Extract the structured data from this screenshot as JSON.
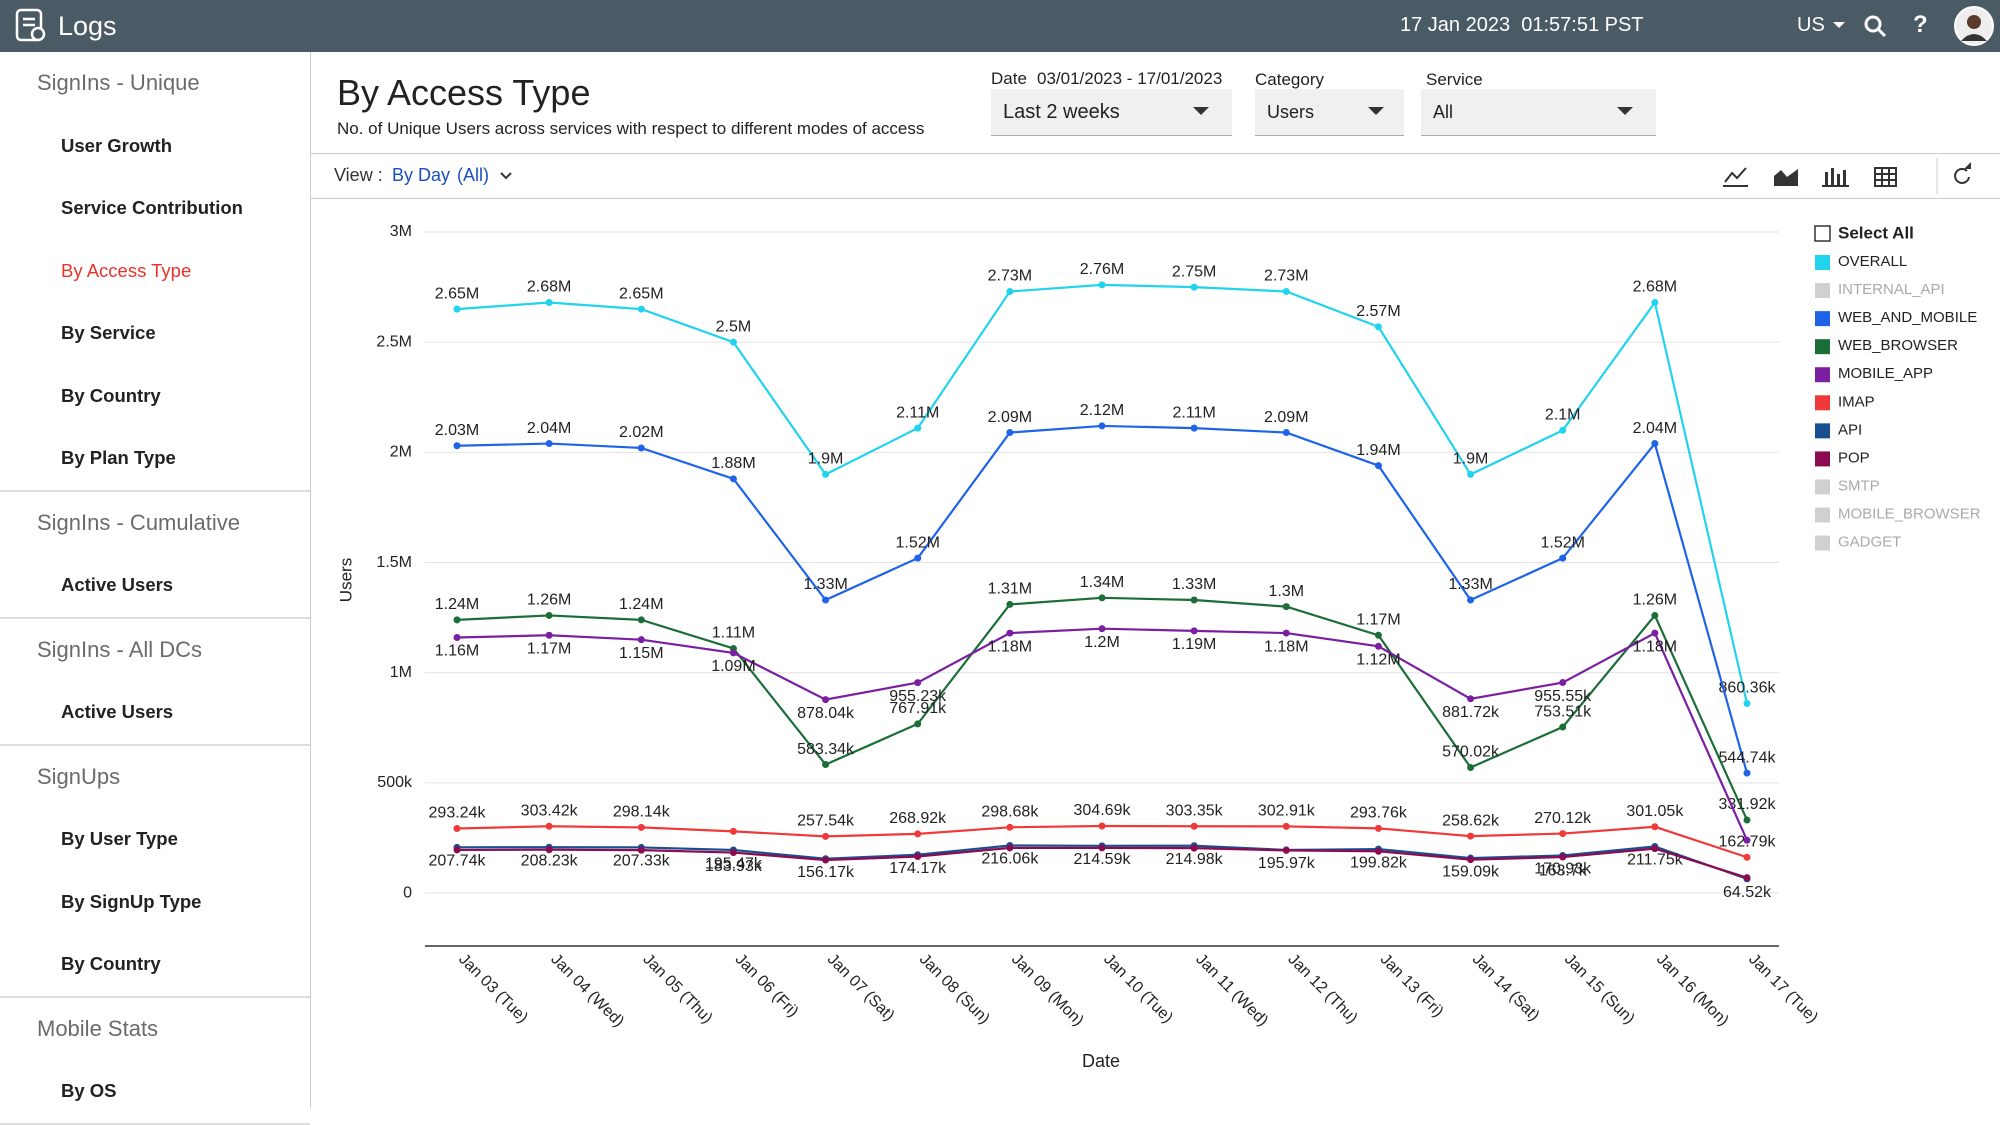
{
  "header": {
    "app_name": "Logs",
    "datetime": "17 Jan 2023  01:57:51 PST",
    "region": "US",
    "help": "?"
  },
  "sidebar": {
    "sections": [
      {
        "title": "SignIns - Unique",
        "items": [
          "User Growth",
          "Service Contribution",
          "By Access Type",
          "By Service",
          "By Country",
          "By Plan Type"
        ]
      },
      {
        "title": "SignIns - Cumulative",
        "items": [
          "Active Users"
        ]
      },
      {
        "title": "SignIns - All DCs",
        "items": [
          "Active Users"
        ]
      },
      {
        "title": "SignUps",
        "items": [
          "By User Type",
          "By SignUp Type",
          "By Country"
        ]
      },
      {
        "title": "Mobile Stats",
        "items": [
          "By OS"
        ]
      }
    ],
    "active": "By Access Type"
  },
  "page": {
    "title": "By Access Type",
    "subtitle": "No. of Unique Users across services with respect to different modes of access"
  },
  "filters": {
    "date": {
      "label": "Date",
      "range": "03/01/2023 - 17/01/2023",
      "value": "Last 2 weeks"
    },
    "category": {
      "label": "Category",
      "value": "Users"
    },
    "service": {
      "label": "Service",
      "value": "All"
    }
  },
  "view": {
    "label": "View :",
    "value": "By Day",
    "scope": "(All)"
  },
  "chart_data": {
    "type": "line",
    "x_label": "Date",
    "y_label": "Users",
    "legend_select_all": "Select All",
    "categories": [
      "Jan 03 (Tue)",
      "Jan 04 (Wed)",
      "Jan 05 (Thu)",
      "Jan 06 (Fri)",
      "Jan 07 (Sat)",
      "Jan 08 (Sun)",
      "Jan 09 (Mon)",
      "Jan 10 (Tue)",
      "Jan 11 (Wed)",
      "Jan 12 (Thu)",
      "Jan 13 (Fri)",
      "Jan 14 (Sat)",
      "Jan 15 (Sun)",
      "Jan 16 (Mon)",
      "Jan 17 (Tue)"
    ],
    "ylim": [
      -240000,
      3000000
    ],
    "yticks": [
      0,
      {
        "value": 500000,
        "label": "500k"
      },
      {
        "value": 1000000,
        "label": "1M"
      },
      {
        "value": 1500000,
        "label": "1.5M"
      },
      {
        "value": 2000000,
        "label": "2M"
      },
      {
        "value": 2500000,
        "label": "2.5M"
      },
      {
        "value": 3000000,
        "label": "3M"
      }
    ],
    "grid": true,
    "series": [
      {
        "name": "OVERALL",
        "color": "#22d3ee",
        "label_side": "above",
        "values": [
          2650000,
          2680000,
          2650000,
          2500000,
          1900000,
          2110000,
          2730000,
          2760000,
          2750000,
          2730000,
          2570000,
          1900000,
          2100000,
          2680000,
          860360
        ],
        "value_labels": [
          "2.65M",
          "2.68M",
          "2.65M",
          "2.5M",
          "1.9M",
          "2.11M",
          "2.73M",
          "2.76M",
          "2.75M",
          "2.73M",
          "2.57M",
          "1.9M",
          "2.1M",
          "2.68M",
          "860.36k"
        ]
      },
      {
        "name": "INTERNAL_API",
        "color": "#d0d0d0",
        "hidden": true
      },
      {
        "name": "WEB_AND_MOBILE",
        "color": "#1e63e9",
        "label_side": "above",
        "values": [
          2030000,
          2040000,
          2020000,
          1880000,
          1330000,
          1520000,
          2090000,
          2120000,
          2110000,
          2090000,
          1940000,
          1330000,
          1520000,
          2040000,
          544740
        ],
        "value_labels": [
          "2.03M",
          "2.04M",
          "2.02M",
          "1.88M",
          "1.33M",
          "1.52M",
          "2.09M",
          "2.12M",
          "2.11M",
          "2.09M",
          "1.94M",
          "1.33M",
          "1.52M",
          "2.04M",
          "544.74k"
        ]
      },
      {
        "name": "WEB_BROWSER",
        "color": "#1b6e38",
        "label_side": "above",
        "values": [
          1240000,
          1260000,
          1240000,
          1110000,
          583340,
          767910,
          1310000,
          1340000,
          1330000,
          1300000,
          1170000,
          570020,
          753510,
          1260000,
          331920
        ],
        "value_labels": [
          "1.24M",
          "1.26M",
          "1.24M",
          "1.11M",
          "583.34k",
          "767.91k",
          "1.31M",
          "1.34M",
          "1.33M",
          "1.3M",
          "1.17M",
          "570.02k",
          "753.51k",
          "1.26M",
          "331.92k"
        ]
      },
      {
        "name": "MOBILE_APP",
        "color": "#7b1fa2",
        "label_side": "below",
        "values": [
          1160000,
          1170000,
          1150000,
          1090000,
          878040,
          955230,
          1180000,
          1200000,
          1190000,
          1180000,
          1120000,
          881720,
          955550,
          1180000,
          240000
        ],
        "value_labels": [
          "1.16M",
          "1.17M",
          "1.15M",
          "1.09M",
          "878.04k",
          "955.23k",
          "1.18M",
          "1.2M",
          "1.19M",
          "1.18M",
          "1.12M",
          "881.72k",
          "955.55k",
          "1.18M",
          null
        ]
      },
      {
        "name": "IMAP",
        "color": "#f03a3a",
        "label_side": "above",
        "values": [
          293240,
          303420,
          298140,
          280000,
          257540,
          268920,
          298680,
          304690,
          303350,
          302910,
          293760,
          258620,
          270120,
          301050,
          162790
        ],
        "value_labels": [
          "293.24k",
          "303.42k",
          "298.14k",
          null,
          "257.54k",
          "268.92k",
          "298.68k",
          "304.69k",
          "303.35k",
          "302.91k",
          "293.76k",
          "258.62k",
          "270.12k",
          "301.05k",
          "162.79k"
        ]
      },
      {
        "name": "API",
        "color": "#1a4f8f",
        "label_side": "below",
        "values": [
          207740,
          208230,
          207330,
          195470,
          156170,
          174170,
          216060,
          214590,
          214980,
          195970,
          199820,
          159090,
          170930,
          211750,
          64520
        ],
        "value_labels": [
          "207.74k",
          "208.23k",
          "207.33k",
          "195.47k",
          "156.17k",
          "174.17k",
          "216.06k",
          "214.59k",
          "214.98k",
          "195.97k",
          "199.82k",
          "159.09k",
          "170.93k",
          "211.75k",
          "64.52k"
        ]
      },
      {
        "name": "POP",
        "color": "#8b0a50",
        "label_side": "below",
        "values": [
          196000,
          197000,
          195000,
          183930,
          150000,
          166000,
          205000,
          205000,
          204000,
          194000,
          190000,
          152000,
          163700,
          202000,
          70000
        ],
        "value_labels": [
          null,
          null,
          null,
          "183.93k",
          null,
          null,
          null,
          null,
          null,
          null,
          null,
          null,
          "163.7k",
          null,
          null
        ]
      },
      {
        "name": "SMTP",
        "color": "#d0d0d0",
        "hidden": true
      },
      {
        "name": "MOBILE_BROWSER",
        "color": "#d0d0d0",
        "hidden": true
      },
      {
        "name": "GADGET",
        "color": "#d0d0d0",
        "hidden": true
      }
    ]
  }
}
